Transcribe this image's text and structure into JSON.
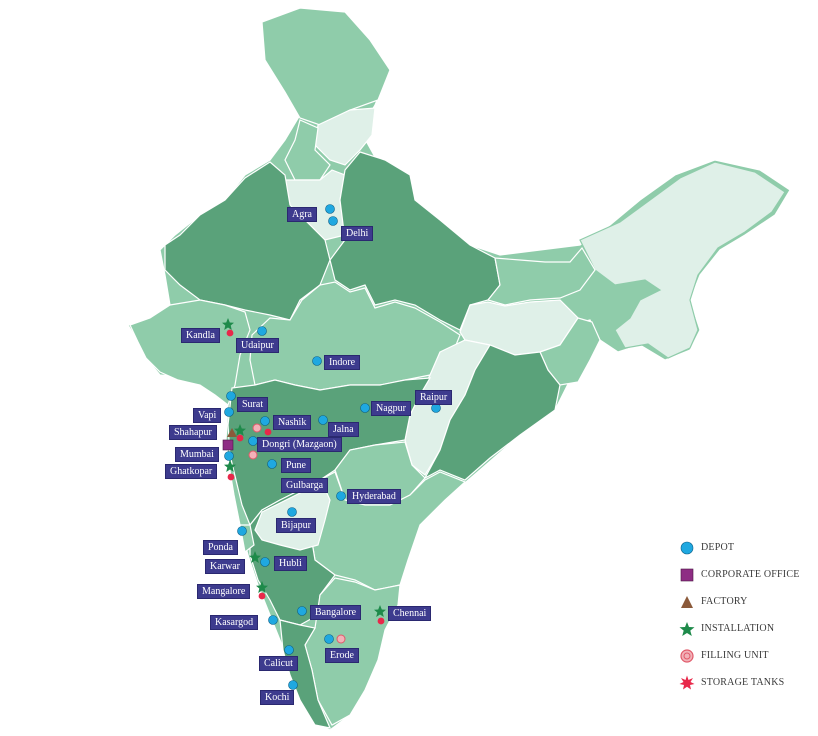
{
  "colors": {
    "light": "#dff0e8",
    "mid": "#8fccaa",
    "medium": "#7fbf98",
    "dark": "#5aa27a",
    "depot": "#1fa8e0",
    "corporate": "#8e2d84",
    "factory": "#8b5a3a",
    "installation": "#1e8a4a",
    "filling": "#e05a6a",
    "storage": "#e8284a",
    "label_bg": "#3d3b8e"
  },
  "cities": [
    {
      "name": "Agra"
    },
    {
      "name": "Delhi"
    },
    {
      "name": "Kandla"
    },
    {
      "name": "Udaipur"
    },
    {
      "name": "Indore"
    },
    {
      "name": "Surat"
    },
    {
      "name": "Nagpur"
    },
    {
      "name": "Raipur"
    },
    {
      "name": "Vapi"
    },
    {
      "name": "Nashik"
    },
    {
      "name": "Jalna"
    },
    {
      "name": "Shahapur"
    },
    {
      "name": "Dongri (Mazgaon)"
    },
    {
      "name": "Mumbai"
    },
    {
      "name": "Ghatkopar"
    },
    {
      "name": "Pune"
    },
    {
      "name": "Gulbarga"
    },
    {
      "name": "Hyderabad"
    },
    {
      "name": "Bijapur"
    },
    {
      "name": "Ponda"
    },
    {
      "name": "Karwar"
    },
    {
      "name": "Hubli"
    },
    {
      "name": "Mangalore"
    },
    {
      "name": "Bangalore"
    },
    {
      "name": "Chennai"
    },
    {
      "name": "Kasargod"
    },
    {
      "name": "Erode"
    },
    {
      "name": "Calicut"
    },
    {
      "name": "Kochi"
    }
  ],
  "legend": [
    {
      "symbol": "depot",
      "label": "DEPOT"
    },
    {
      "symbol": "corporate",
      "label": "CORPORATE OFFICE"
    },
    {
      "symbol": "factory",
      "label": "FACTORY"
    },
    {
      "symbol": "installation",
      "label": "INSTALLATION"
    },
    {
      "symbol": "filling",
      "label": "FILLING UNIT"
    },
    {
      "symbol": "storage",
      "label": "STORAGE TANKS"
    }
  ]
}
